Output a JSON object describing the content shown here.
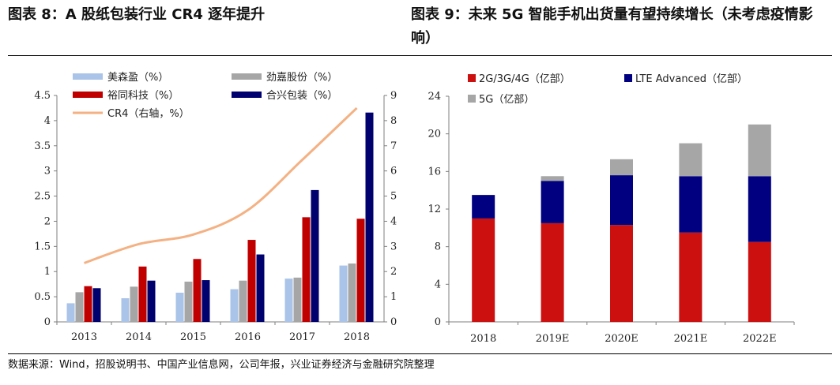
{
  "left_title": "图表 8：A 股纸包装行业 CR4 逐年提升",
  "right_title": "图表 9：未来 5G 智能手机出货量有望持续增长（未考虑疫情影响）",
  "source": "数据来源：Wind，招股说明书、中国产业信息网，公司年报，兴业证券经济与金融研究院整理",
  "chart_data": [
    {
      "type": "bar",
      "categories": [
        "2013",
        "2014",
        "2015",
        "2016",
        "2017",
        "2018"
      ],
      "ylim": [
        0,
        4.5
      ],
      "y_ticks": [
        "0",
        "0.5",
        "1",
        "1.5",
        "2",
        "2.5",
        "3",
        "3.5",
        "4",
        "4.5"
      ],
      "y2lim": [
        0,
        9
      ],
      "y2_ticks": [
        "0",
        "1",
        "2",
        "3",
        "4",
        "5",
        "6",
        "7",
        "8",
        "9"
      ],
      "legend_position": "top",
      "series": [
        {
          "name": "美森盈（%）",
          "color": "#a9c4e8",
          "values": [
            0.37,
            0.47,
            0.58,
            0.65,
            0.86,
            1.12
          ]
        },
        {
          "name": "劲嘉股份（%）",
          "color": "#a6a6a6",
          "values": [
            0.59,
            0.7,
            0.8,
            0.82,
            0.88,
            1.16
          ]
        },
        {
          "name": "裕同科技（%）",
          "color": "#c00000",
          "values": [
            0.71,
            1.1,
            1.25,
            1.63,
            2.08,
            2.05
          ]
        },
        {
          "name": "合兴包装（%）",
          "color": "#00006e",
          "values": [
            0.67,
            0.82,
            0.83,
            1.34,
            2.62,
            4.16
          ]
        }
      ],
      "line_series": {
        "name": "CR4（右轴，%）",
        "color": "#f4b183",
        "axis": "right",
        "values": [
          2.34,
          3.09,
          3.47,
          4.44,
          6.44,
          8.5
        ]
      }
    },
    {
      "type": "bar",
      "stacked": true,
      "categories": [
        "2018",
        "2019E",
        "2020E",
        "2021E",
        "2022E"
      ],
      "ylim": [
        0,
        24
      ],
      "y_ticks": [
        "0",
        "4",
        "8",
        "12",
        "16",
        "20",
        "24"
      ],
      "legend_position": "top",
      "series": [
        {
          "name": "2G/3G/4G（亿部）",
          "color": "#cc1010",
          "values": [
            11,
            10.5,
            10.3,
            9.5,
            8.5
          ]
        },
        {
          "name": "LTE Advanced（亿部）",
          "color": "#000080",
          "values": [
            2.5,
            4.5,
            5.3,
            6.0,
            7.0
          ]
        },
        {
          "name": "5G（亿部）",
          "color": "#a6a6a6",
          "values": [
            0,
            0.5,
            1.7,
            3.5,
            5.5
          ]
        }
      ]
    }
  ]
}
